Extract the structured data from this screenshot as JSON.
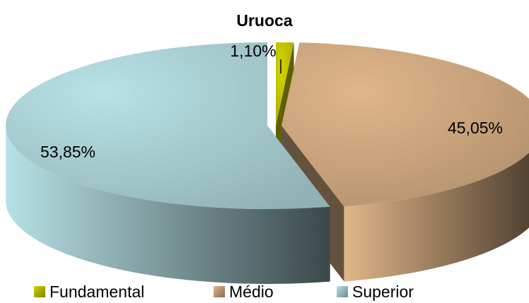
{
  "chart_data": {
    "type": "pie",
    "title": "Uruoca",
    "categories": [
      "Fundamental",
      "Médio",
      "Superior"
    ],
    "values": [
      1.1,
      45.05,
      53.85
    ],
    "data_labels": [
      "1,10%",
      "45,05%",
      "53,85%"
    ],
    "colors": [
      "#d4d400",
      "#e0b68a",
      "#b8e2e6"
    ],
    "legend_position": "bottom",
    "exploded": true,
    "three_d": true
  }
}
